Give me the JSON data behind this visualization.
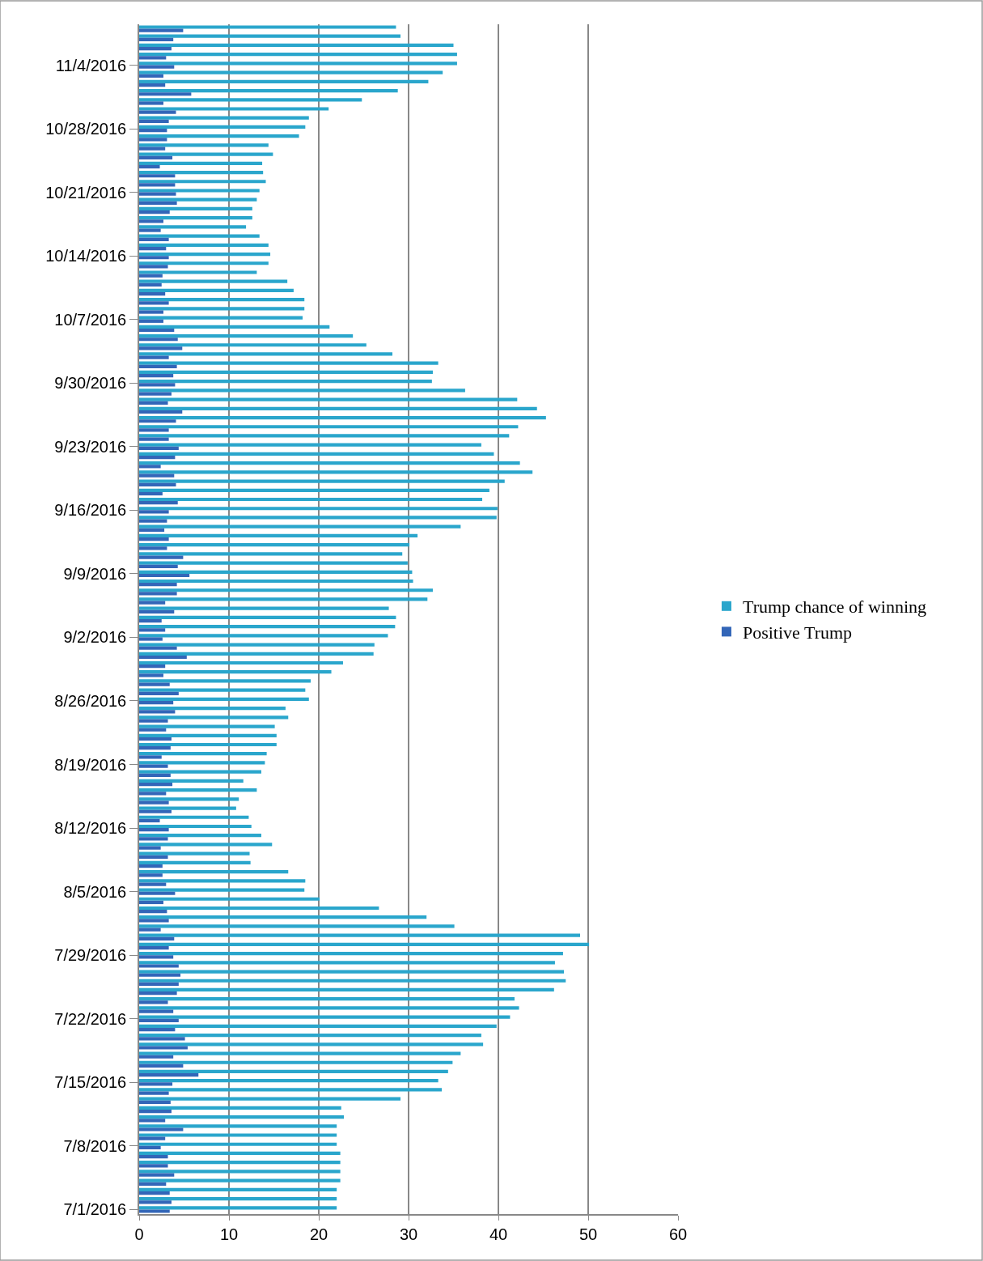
{
  "chart_data": {
    "type": "bar",
    "orientation": "horizontal",
    "categories": [
      null,
      null,
      null,
      null,
      "11/4/2016",
      null,
      null,
      null,
      null,
      null,
      null,
      "10/28/2016",
      null,
      null,
      null,
      null,
      null,
      null,
      "10/21/2016",
      null,
      null,
      null,
      null,
      null,
      null,
      "10/14/2016",
      null,
      null,
      null,
      null,
      null,
      null,
      "10/7/2016",
      null,
      null,
      null,
      null,
      null,
      null,
      "9/30/2016",
      null,
      null,
      null,
      null,
      null,
      null,
      "9/23/2016",
      null,
      null,
      null,
      null,
      null,
      null,
      "9/16/2016",
      null,
      null,
      null,
      null,
      null,
      null,
      "9/9/2016",
      null,
      null,
      null,
      null,
      null,
      null,
      "9/2/2016",
      null,
      null,
      null,
      null,
      null,
      null,
      "8/26/2016",
      null,
      null,
      null,
      null,
      null,
      null,
      "8/19/2016",
      null,
      null,
      null,
      null,
      null,
      null,
      "8/12/2016",
      null,
      null,
      null,
      null,
      null,
      null,
      "8/5/2016",
      null,
      null,
      null,
      null,
      null,
      null,
      "7/29/2016",
      null,
      null,
      null,
      null,
      null,
      null,
      "7/22/2016",
      null,
      null,
      null,
      null,
      null,
      null,
      "7/15/2016",
      null,
      null,
      null,
      null,
      null,
      null,
      "7/8/2016",
      null,
      null,
      null,
      null,
      null,
      null,
      "7/1/2016"
    ],
    "series": [
      {
        "name": "Trump chance of winning",
        "color": "#2aa6cc",
        "values": [
          28.6,
          29.1,
          35.0,
          35.4,
          35.4,
          33.8,
          32.2,
          28.8,
          24.8,
          21.1,
          18.9,
          18.5,
          17.8,
          14.4,
          14.9,
          13.7,
          13.8,
          14.1,
          13.4,
          13.1,
          12.6,
          12.6,
          11.9,
          13.4,
          14.4,
          14.6,
          14.4,
          13.1,
          16.5,
          17.2,
          18.4,
          18.4,
          18.2,
          21.2,
          23.8,
          25.3,
          28.2,
          33.3,
          32.7,
          32.6,
          36.3,
          42.1,
          44.3,
          45.3,
          42.2,
          41.2,
          38.1,
          39.5,
          42.4,
          43.8,
          40.7,
          39.0,
          38.2,
          39.9,
          39.8,
          35.8,
          31.0,
          30.1,
          29.3,
          29.9,
          30.4,
          30.5,
          32.7,
          32.1,
          27.8,
          28.6,
          28.5,
          27.7,
          26.2,
          26.1,
          22.7,
          21.4,
          19.1,
          18.5,
          18.9,
          16.3,
          16.6,
          15.1,
          15.3,
          15.3,
          14.2,
          14.0,
          13.6,
          11.6,
          13.1,
          11.1,
          10.8,
          12.2,
          12.5,
          13.6,
          14.8,
          12.3,
          12.4,
          16.6,
          18.5,
          18.4,
          20.1,
          26.7,
          32.0,
          35.1,
          49.1,
          50.1,
          47.2,
          46.3,
          47.3,
          47.5,
          46.2,
          41.8,
          42.3,
          41.3,
          39.8,
          38.1,
          38.3,
          35.8,
          34.9,
          34.4,
          33.3,
          33.7,
          29.1,
          22.5,
          22.8,
          22.0,
          22.0,
          22.0,
          22.4,
          22.4,
          22.4,
          22.4,
          22.0,
          22.0,
          22.0
        ]
      },
      {
        "name": "Positive Trump",
        "color": "#3366b8",
        "values": [
          4.9,
          3.8,
          3.6,
          3.0,
          3.9,
          2.7,
          2.9,
          5.8,
          2.7,
          4.1,
          3.3,
          3.1,
          3.1,
          2.9,
          3.7,
          2.3,
          4.0,
          4.0,
          4.1,
          4.2,
          3.4,
          2.7,
          2.4,
          3.3,
          3.0,
          3.3,
          3.2,
          2.6,
          2.5,
          2.9,
          3.3,
          2.7,
          2.7,
          3.9,
          4.3,
          4.8,
          3.3,
          4.2,
          3.8,
          4.0,
          3.6,
          3.2,
          4.8,
          4.1,
          3.3,
          3.3,
          4.4,
          4.0,
          2.4,
          3.9,
          4.1,
          2.6,
          4.3,
          3.3,
          3.1,
          2.8,
          3.3,
          3.1,
          4.9,
          4.3,
          5.6,
          4.2,
          4.2,
          2.9,
          3.9,
          2.5,
          2.9,
          2.6,
          4.2,
          5.3,
          2.9,
          2.7,
          3.4,
          4.4,
          3.8,
          4.0,
          3.2,
          3.0,
          3.6,
          3.5,
          2.5,
          3.2,
          3.5,
          3.7,
          3.0,
          3.3,
          3.6,
          2.3,
          3.3,
          3.2,
          2.4,
          3.2,
          2.6,
          2.6,
          3.0,
          4.0,
          2.7,
          3.1,
          3.3,
          2.4,
          3.9,
          3.3,
          3.8,
          4.4,
          4.6,
          4.4,
          4.2,
          3.2,
          3.8,
          4.4,
          4.0,
          5.1,
          5.4,
          3.8,
          4.9,
          6.6,
          3.7,
          3.3,
          3.5,
          3.6,
          2.9,
          4.9,
          2.9,
          2.4,
          3.2,
          3.2,
          3.9,
          3.0,
          3.4,
          3.6,
          3.4
        ]
      }
    ],
    "xlim": [
      0,
      60
    ],
    "xticks": [
      0,
      10,
      20,
      30,
      40,
      50,
      60
    ],
    "grid": "x",
    "legend": "right"
  }
}
